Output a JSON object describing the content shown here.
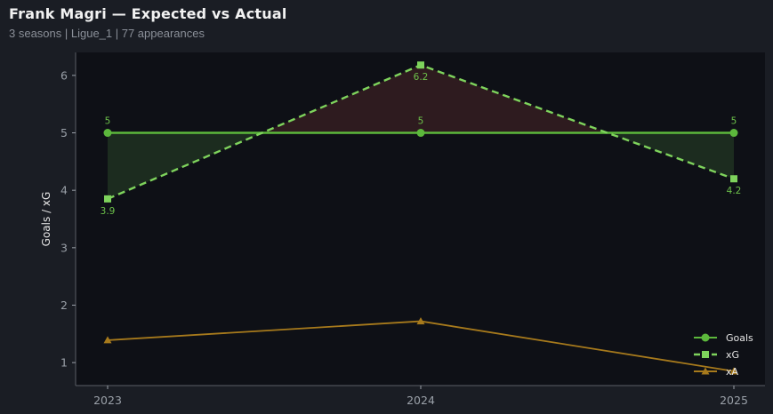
{
  "header": {
    "title": "Frank Magri — Expected vs Actual",
    "subtitle": "3 seasons | Ligue_1 | 77 appearances"
  },
  "chart_data": {
    "type": "line",
    "x": [
      "2023",
      "2024",
      "2025"
    ],
    "ylabel": "Goals / xG",
    "ylim": [
      0.6,
      6.4
    ],
    "yticks": [
      1,
      2,
      3,
      4,
      5,
      6
    ],
    "grid": false,
    "legend_position": "bottom-right",
    "series": [
      {
        "name": "Goals",
        "values": [
          5,
          5,
          5
        ],
        "color": "#5cb83c",
        "marker": "circle",
        "style": "solid",
        "labels": [
          "5",
          "5",
          "5"
        ]
      },
      {
        "name": "xG",
        "values": [
          3.85,
          6.18,
          4.2
        ],
        "color": "#7ed35c",
        "marker": "square",
        "style": "dashed",
        "labels": [
          "3.9",
          "6.2",
          "4.2"
        ]
      },
      {
        "name": "xA",
        "values": [
          1.39,
          1.72,
          0.85
        ],
        "color": "#a77a1c",
        "marker": "triangle",
        "style": "solid"
      }
    ],
    "fill_colors": {
      "overperform": "#1c2c1f",
      "underperform": "#2e1b1f"
    }
  }
}
